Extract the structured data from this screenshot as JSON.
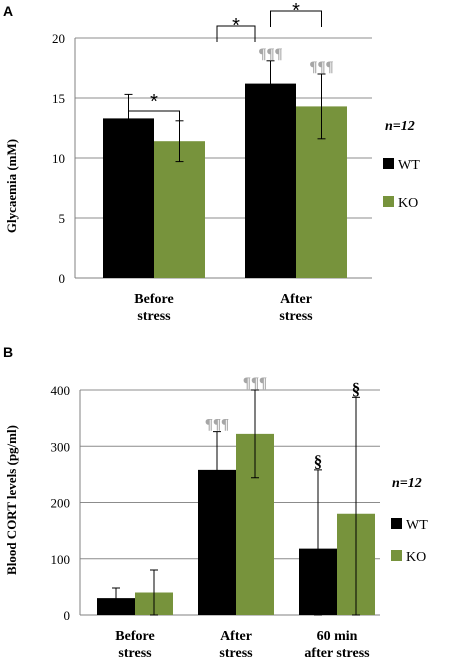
{
  "colors": {
    "wt": "#000000",
    "ko": "#77933c",
    "grid": "#8c8c8c",
    "axis": "#808080",
    "marker": "#a6a6a6"
  },
  "legend": {
    "n_label": "n=12",
    "wt_label": "WT",
    "ko_label": "KO"
  },
  "chart_data": [
    {
      "panel": "A",
      "type": "bar",
      "ylabel": "Glycaemia (mM)",
      "ylim": [
        0,
        20
      ],
      "yticks": [
        0,
        5,
        10,
        15,
        20
      ],
      "categories": [
        [
          "Before",
          "stress"
        ],
        [
          "After",
          "stress"
        ]
      ],
      "series": [
        {
          "name": "WT",
          "values": [
            13.3,
            16.2
          ],
          "error": [
            2.0,
            1.9
          ]
        },
        {
          "name": "KO",
          "values": [
            11.4,
            14.3
          ],
          "error": [
            1.7,
            2.7
          ]
        }
      ],
      "significance": [
        {
          "label": "*",
          "category": 0,
          "between": [
            "WT",
            "KO"
          ]
        },
        {
          "label": "*",
          "category": 1,
          "between": [
            "WT",
            "KO"
          ]
        }
      ],
      "markers": [
        {
          "label": "¶¶¶",
          "category": 1,
          "series": "WT"
        },
        {
          "label": "¶¶¶",
          "category": 1,
          "series": "KO"
        }
      ],
      "grid": true
    },
    {
      "panel": "B",
      "type": "bar",
      "ylabel": "Blood CORT levels (pg/ml)",
      "ylim": [
        0,
        400
      ],
      "yticks": [
        0,
        100,
        200,
        300,
        400
      ],
      "categories": [
        [
          "Before",
          "stress"
        ],
        [
          "After",
          "stress"
        ],
        [
          "60 min",
          "after stress"
        ]
      ],
      "series": [
        {
          "name": "WT",
          "values": [
            30,
            258,
            118
          ],
          "error": [
            18,
            68,
            140
          ]
        },
        {
          "name": "KO",
          "values": [
            40,
            322,
            180
          ],
          "error": [
            40,
            78,
            207
          ]
        }
      ],
      "significance": [
        {
          "label": "*",
          "category": 1,
          "between": [
            "WT",
            "KO"
          ]
        }
      ],
      "markers": [
        {
          "label": "¶¶¶",
          "category": 1,
          "series": "WT"
        },
        {
          "label": "¶¶¶",
          "category": 1,
          "series": "KO"
        },
        {
          "label": "§",
          "category": 2,
          "series": "WT"
        },
        {
          "label": "§",
          "category": 2,
          "series": "KO"
        }
      ],
      "grid": true
    }
  ]
}
